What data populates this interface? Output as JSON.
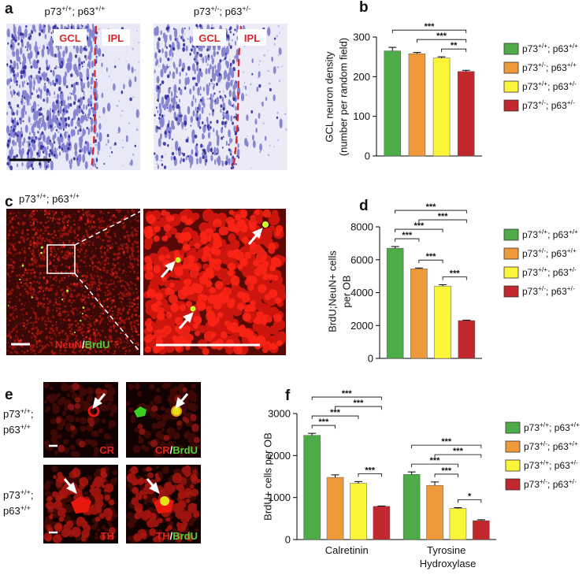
{
  "panels": {
    "a": {
      "letter": "a",
      "genotypes": [
        "p73+/+; p63+/+",
        "p73+/-; p63+/-"
      ],
      "layers": [
        "GCL",
        "IPL"
      ]
    },
    "c": {
      "letter": "c",
      "genotype": "p73+/+; p63+/+",
      "stain": [
        "NeuN",
        "/",
        "BrdU"
      ]
    },
    "e": {
      "letter": "e",
      "genotypes": [
        [
          "p73+/+;",
          "p63+/+"
        ],
        [
          "p73+/+;",
          "p63+/+"
        ]
      ],
      "markers": [
        "CR",
        "TH"
      ],
      "merge": [
        "/",
        "BrdU"
      ]
    }
  },
  "chart_data": [
    {
      "type": "bar",
      "panel": "b",
      "ylabel": [
        "GCL neuron density",
        "(number per random field)"
      ],
      "categories": [
        null
      ],
      "series": [
        {
          "name": "p73+/+; p63+/+",
          "color": "#4dac47",
          "values": [
            265
          ],
          "errors": [
            9
          ]
        },
        {
          "name": "p73+/-; p63+/+",
          "color": "#ee9a3a",
          "values": [
            258
          ],
          "errors": [
            3
          ]
        },
        {
          "name": "p73+/+; p63+/-",
          "color": "#fbf53a",
          "values": [
            247
          ],
          "errors": [
            3
          ]
        },
        {
          "name": "p73+/-; p63+/-",
          "color": "#c1272d",
          "values": [
            213
          ],
          "errors": [
            3
          ]
        }
      ],
      "ylim": [
        0,
        300
      ],
      "yticks": [
        0,
        100,
        200,
        300
      ],
      "comparisons": [
        {
          "category": 0,
          "pair": [
            0,
            3
          ],
          "label": "***"
        },
        {
          "category": 0,
          "pair": [
            1,
            3
          ],
          "label": "***"
        },
        {
          "category": 0,
          "pair": [
            2,
            3
          ],
          "label": "**"
        }
      ]
    },
    {
      "type": "bar",
      "panel": "d",
      "ylabel": [
        "BrdU;NeuN+ cells",
        "per OB"
      ],
      "categories": [
        null
      ],
      "series": [
        {
          "name": "p73+/+; p63+/+",
          "color": "#4dac47",
          "values": [
            6700
          ],
          "errors": [
            100
          ]
        },
        {
          "name": "p73+/-; p63+/+",
          "color": "#ee9a3a",
          "values": [
            5450
          ],
          "errors": [
            50
          ]
        },
        {
          "name": "p73+/+; p63+/-",
          "color": "#fbf53a",
          "values": [
            4400
          ],
          "errors": [
            80
          ]
        },
        {
          "name": "p73+/-; p63+/-",
          "color": "#c1272d",
          "values": [
            2300
          ],
          "errors": [
            30
          ]
        }
      ],
      "ylim": [
        0,
        8000
      ],
      "yticks": [
        0,
        2000,
        4000,
        6000,
        8000
      ],
      "comparisons": [
        {
          "category": 0,
          "pair": [
            0,
            3
          ],
          "label": "***"
        },
        {
          "category": 0,
          "pair": [
            0,
            1
          ],
          "label": "***"
        },
        {
          "category": 0,
          "pair": [
            0,
            2
          ],
          "label": "***"
        },
        {
          "category": 0,
          "pair": [
            1,
            3
          ],
          "label": "***"
        },
        {
          "category": 0,
          "pair": [
            1,
            2
          ],
          "label": "***"
        },
        {
          "category": 0,
          "pair": [
            2,
            3
          ],
          "label": "***"
        }
      ]
    },
    {
      "type": "bar",
      "panel": "f",
      "ylabel": [
        "BrdU+ cells per OB"
      ],
      "categories": [
        "Calretinin",
        "Tyrosine Hydroxylase"
      ],
      "series": [
        {
          "name": "p73+/+; p63+/+",
          "color": "#4dac47",
          "values": [
            2480,
            1550
          ],
          "errors": [
            50,
            60
          ]
        },
        {
          "name": "p73+/-; p63+/+",
          "color": "#ee9a3a",
          "values": [
            1480,
            1290
          ],
          "errors": [
            60,
            80
          ]
        },
        {
          "name": "p73+/+; p63+/-",
          "color": "#fbf53a",
          "values": [
            1340,
            740
          ],
          "errors": [
            40,
            20
          ]
        },
        {
          "name": "p73+/-; p63+/-",
          "color": "#c1272d",
          "values": [
            790,
            450
          ],
          "errors": [
            10,
            20
          ]
        }
      ],
      "ylim": [
        0,
        3000
      ],
      "yticks": [
        0,
        1000,
        2000,
        3000
      ],
      "comparisons": [
        {
          "category": 0,
          "pair": [
            0,
            3
          ],
          "label": "***"
        },
        {
          "category": 0,
          "pair": [
            0,
            2
          ],
          "label": "***"
        },
        {
          "category": 0,
          "pair": [
            0,
            1
          ],
          "label": "***"
        },
        {
          "category": 0,
          "pair": [
            1,
            3
          ],
          "label": "***"
        },
        {
          "category": 0,
          "pair": [
            2,
            3
          ],
          "label": "***"
        },
        {
          "category": 1,
          "pair": [
            0,
            3
          ],
          "label": "***"
        },
        {
          "category": 1,
          "pair": [
            0,
            2
          ],
          "label": "***"
        },
        {
          "category": 1,
          "pair": [
            1,
            3
          ],
          "label": "***"
        },
        {
          "category": 1,
          "pair": [
            1,
            2
          ],
          "label": "***"
        },
        {
          "category": 1,
          "pair": [
            2,
            3
          ],
          "label": "*"
        }
      ]
    }
  ]
}
